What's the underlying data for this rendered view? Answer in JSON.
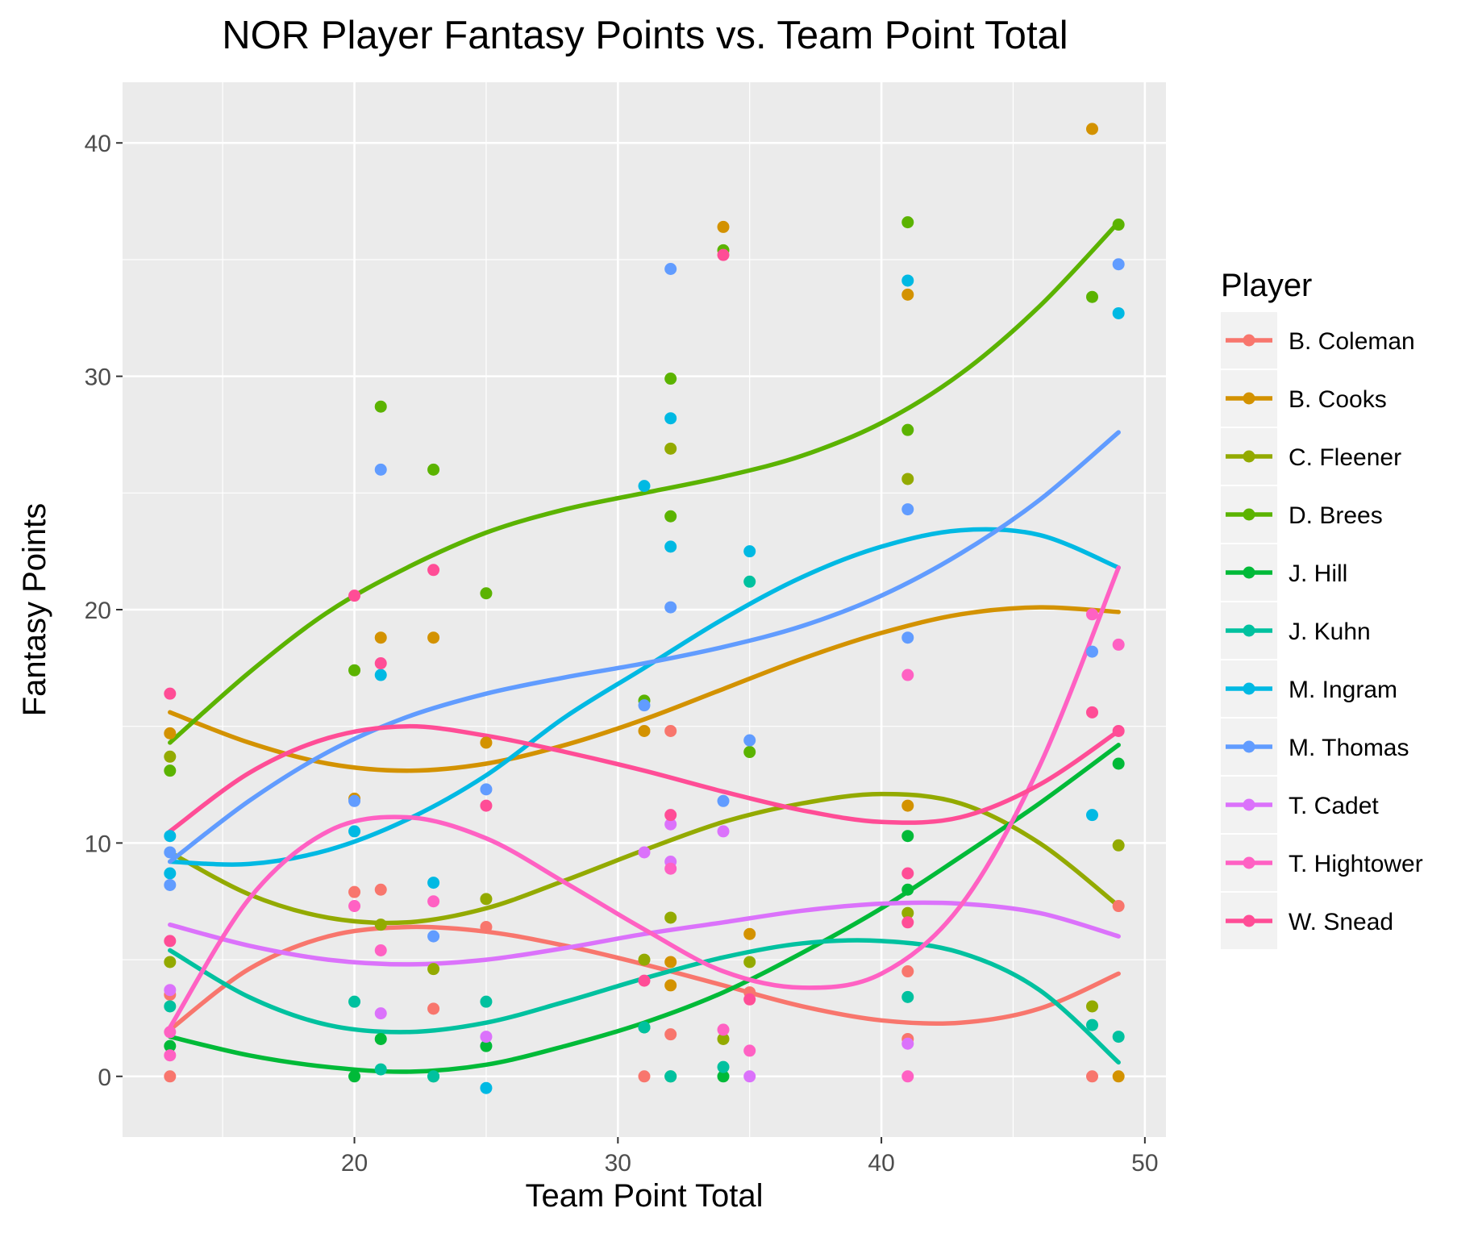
{
  "chart_data": {
    "type": "scatter",
    "title": "NOR Player Fantasy Points vs. Team Point Total",
    "xlabel": "Team Point Total",
    "ylabel": "Fantasy Points",
    "xlim": [
      11.2,
      50.8
    ],
    "ylim": [
      -2.6,
      42.6
    ],
    "x_ticks": [
      20,
      30,
      40,
      50
    ],
    "y_ticks": [
      0,
      10,
      20,
      30,
      40
    ],
    "grid": true,
    "legend": {
      "title": "Player",
      "position": "right"
    },
    "series": [
      {
        "name": "B. Coleman",
        "color": "#F8766D",
        "points": [
          [
            13,
            0
          ],
          [
            13,
            3.5
          ],
          [
            20,
            7.9
          ],
          [
            21,
            8
          ],
          [
            23,
            2.9
          ],
          [
            25,
            6.4
          ],
          [
            31,
            0
          ],
          [
            32,
            14.8
          ],
          [
            32,
            1.8
          ],
          [
            35,
            3.6
          ],
          [
            41,
            4.5
          ],
          [
            41,
            1.6
          ],
          [
            48,
            0
          ],
          [
            49,
            7.3
          ]
        ],
        "fit": [
          [
            13,
            2
          ],
          [
            16,
            4.6
          ],
          [
            19,
            6
          ],
          [
            22,
            6.4
          ],
          [
            25,
            6.2
          ],
          [
            28,
            5.6
          ],
          [
            31,
            4.8
          ],
          [
            34,
            3.9
          ],
          [
            37,
            3
          ],
          [
            40,
            2.4
          ],
          [
            43,
            2.3
          ],
          [
            46,
            2.9
          ],
          [
            49,
            4.4
          ]
        ]
      },
      {
        "name": "B. Cooks",
        "color": "#D39200",
        "points": [
          [
            13,
            14.7
          ],
          [
            20,
            11.9
          ],
          [
            21,
            18.8
          ],
          [
            23,
            18.8
          ],
          [
            25,
            14.3
          ],
          [
            31,
            14.8
          ],
          [
            32,
            4.9
          ],
          [
            32,
            3.9
          ],
          [
            34,
            36.4
          ],
          [
            35,
            6.1
          ],
          [
            41,
            33.5
          ],
          [
            41,
            11.6
          ],
          [
            48,
            40.6
          ],
          [
            49,
            0
          ]
        ],
        "fit": [
          [
            13,
            15.6
          ],
          [
            16,
            14.3
          ],
          [
            19,
            13.4
          ],
          [
            22,
            13.1
          ],
          [
            25,
            13.4
          ],
          [
            28,
            14.2
          ],
          [
            31,
            15.3
          ],
          [
            34,
            16.6
          ],
          [
            37,
            17.9
          ],
          [
            40,
            19
          ],
          [
            43,
            19.8
          ],
          [
            46,
            20.1
          ],
          [
            49,
            19.9
          ]
        ]
      },
      {
        "name": "C. Fleener",
        "color": "#93AA00",
        "points": [
          [
            13,
            13.7
          ],
          [
            13,
            4.9
          ],
          [
            21,
            6.5
          ],
          [
            23,
            4.6
          ],
          [
            25,
            7.6
          ],
          [
            31,
            5
          ],
          [
            32,
            26.9
          ],
          [
            32,
            6.8
          ],
          [
            34,
            1.6
          ],
          [
            35,
            4.9
          ],
          [
            41,
            25.6
          ],
          [
            41,
            7
          ],
          [
            48,
            3
          ],
          [
            49,
            9.9
          ]
        ],
        "fit": [
          [
            13,
            9.6
          ],
          [
            16,
            7.8
          ],
          [
            19,
            6.8
          ],
          [
            22,
            6.6
          ],
          [
            25,
            7.2
          ],
          [
            28,
            8.4
          ],
          [
            31,
            9.7
          ],
          [
            34,
            10.9
          ],
          [
            37,
            11.7
          ],
          [
            40,
            12.1
          ],
          [
            43,
            11.7
          ],
          [
            46,
            10
          ],
          [
            49,
            7.3
          ]
        ]
      },
      {
        "name": "D. Brees",
        "color": "#5BB300",
        "points": [
          [
            13,
            13.1
          ],
          [
            20,
            17.4
          ],
          [
            21,
            28.7
          ],
          [
            23,
            26
          ],
          [
            25,
            20.7
          ],
          [
            31,
            16.1
          ],
          [
            32,
            29.9
          ],
          [
            32,
            24
          ],
          [
            34,
            35.4
          ],
          [
            35,
            13.9
          ],
          [
            41,
            36.6
          ],
          [
            41,
            27.7
          ],
          [
            48,
            33.4
          ],
          [
            49,
            36.5
          ]
        ],
        "fit": [
          [
            13,
            14.3
          ],
          [
            16,
            17.3
          ],
          [
            19,
            19.9
          ],
          [
            22,
            21.8
          ],
          [
            25,
            23.3
          ],
          [
            28,
            24.3
          ],
          [
            31,
            25
          ],
          [
            34,
            25.7
          ],
          [
            37,
            26.6
          ],
          [
            40,
            28
          ],
          [
            43,
            30.1
          ],
          [
            46,
            33
          ],
          [
            49,
            36.6
          ]
        ]
      },
      {
        "name": "J. Hill",
        "color": "#00BA38",
        "points": [
          [
            13,
            1.3
          ],
          [
            20,
            0
          ],
          [
            21,
            1.6
          ],
          [
            23,
            0
          ],
          [
            25,
            1.3
          ],
          [
            31,
            2.1
          ],
          [
            32,
            0
          ],
          [
            34,
            0
          ],
          [
            41,
            10.3
          ],
          [
            41,
            8
          ],
          [
            49,
            13.4
          ]
        ],
        "fit": [
          [
            13,
            1.7
          ],
          [
            16,
            0.9
          ],
          [
            19,
            0.4
          ],
          [
            22,
            0.2
          ],
          [
            25,
            0.5
          ],
          [
            28,
            1.3
          ],
          [
            31,
            2.3
          ],
          [
            34,
            3.6
          ],
          [
            37,
            5.3
          ],
          [
            40,
            7.2
          ],
          [
            43,
            9.4
          ],
          [
            46,
            11.7
          ],
          [
            49,
            14.2
          ]
        ]
      },
      {
        "name": "J. Kuhn",
        "color": "#00C19F",
        "points": [
          [
            13,
            3
          ],
          [
            20,
            3.2
          ],
          [
            21,
            0.3
          ],
          [
            23,
            0
          ],
          [
            25,
            3.2
          ],
          [
            31,
            2.1
          ],
          [
            32,
            0
          ],
          [
            34,
            0.4
          ],
          [
            35,
            21.2
          ],
          [
            41,
            3.4
          ],
          [
            48,
            2.2
          ],
          [
            49,
            1.7
          ]
        ],
        "fit": [
          [
            13,
            5.4
          ],
          [
            16,
            3.4
          ],
          [
            19,
            2.2
          ],
          [
            22,
            1.9
          ],
          [
            25,
            2.3
          ],
          [
            28,
            3.2
          ],
          [
            31,
            4.2
          ],
          [
            34,
            5.1
          ],
          [
            37,
            5.7
          ],
          [
            40,
            5.8
          ],
          [
            43,
            5.3
          ],
          [
            46,
            3.7
          ],
          [
            49,
            0.6
          ]
        ]
      },
      {
        "name": "M. Ingram",
        "color": "#00B9E3",
        "points": [
          [
            13,
            10.3
          ],
          [
            13,
            8.7
          ],
          [
            20,
            10.5
          ],
          [
            21,
            17.2
          ],
          [
            23,
            8.3
          ],
          [
            25,
            -0.5
          ],
          [
            31,
            25.3
          ],
          [
            32,
            28.2
          ],
          [
            32,
            22.7
          ],
          [
            35,
            22.5
          ],
          [
            41,
            34.1
          ],
          [
            48,
            11.2
          ],
          [
            49,
            32.7
          ]
        ],
        "fit": [
          [
            13,
            9.2
          ],
          [
            16,
            9.1
          ],
          [
            19,
            9.7
          ],
          [
            22,
            11
          ],
          [
            25,
            12.9
          ],
          [
            28,
            15.4
          ],
          [
            31,
            17.5
          ],
          [
            34,
            19.6
          ],
          [
            37,
            21.4
          ],
          [
            40,
            22.7
          ],
          [
            43,
            23.4
          ],
          [
            46,
            23.2
          ],
          [
            49,
            21.8
          ]
        ]
      },
      {
        "name": "M. Thomas",
        "color": "#619CFF",
        "points": [
          [
            13,
            9.6
          ],
          [
            13,
            8.2
          ],
          [
            20,
            11.8
          ],
          [
            21,
            26
          ],
          [
            23,
            6
          ],
          [
            25,
            12.3
          ],
          [
            31,
            15.9
          ],
          [
            32,
            34.6
          ],
          [
            32,
            20.1
          ],
          [
            34,
            11.8
          ],
          [
            35,
            14.4
          ],
          [
            41,
            24.3
          ],
          [
            41,
            18.8
          ],
          [
            48,
            18.2
          ],
          [
            49,
            34.8
          ]
        ],
        "fit": [
          [
            13,
            9.2
          ],
          [
            16,
            11.8
          ],
          [
            19,
            13.9
          ],
          [
            22,
            15.4
          ],
          [
            25,
            16.4
          ],
          [
            28,
            17.1
          ],
          [
            31,
            17.7
          ],
          [
            34,
            18.4
          ],
          [
            37,
            19.3
          ],
          [
            40,
            20.6
          ],
          [
            43,
            22.4
          ],
          [
            46,
            24.7
          ],
          [
            49,
            27.6
          ]
        ]
      },
      {
        "name": "T. Cadet",
        "color": "#DB72FB",
        "points": [
          [
            13,
            3.7
          ],
          [
            21,
            2.7
          ],
          [
            25,
            1.7
          ],
          [
            31,
            9.6
          ],
          [
            32,
            10.8
          ],
          [
            32,
            9.2
          ],
          [
            34,
            10.5
          ],
          [
            35,
            0
          ],
          [
            41,
            1.4
          ]
        ],
        "fit": [
          [
            13,
            6.5
          ],
          [
            16,
            5.6
          ],
          [
            19,
            5
          ],
          [
            22,
            4.8
          ],
          [
            25,
            5
          ],
          [
            28,
            5.5
          ],
          [
            31,
            6.1
          ],
          [
            34,
            6.6
          ],
          [
            37,
            7.1
          ],
          [
            40,
            7.4
          ],
          [
            43,
            7.4
          ],
          [
            46,
            7
          ],
          [
            49,
            6
          ]
        ]
      },
      {
        "name": "T. Hightower",
        "color": "#FF61C3",
        "points": [
          [
            13,
            0.9
          ],
          [
            13,
            1.9
          ],
          [
            20,
            7.3
          ],
          [
            21,
            5.4
          ],
          [
            23,
            7.5
          ],
          [
            32,
            8.9
          ],
          [
            34,
            2
          ],
          [
            35,
            1.1
          ],
          [
            41,
            17.2
          ],
          [
            41,
            0
          ],
          [
            48,
            19.8
          ],
          [
            49,
            18.5
          ]
        ],
        "fit": [
          [
            13,
            2.1
          ],
          [
            16,
            7.6
          ],
          [
            19,
            10.5
          ],
          [
            22,
            11.1
          ],
          [
            25,
            10.2
          ],
          [
            28,
            8.3
          ],
          [
            31,
            6.3
          ],
          [
            34,
            4.5
          ],
          [
            37,
            3.8
          ],
          [
            40,
            4.4
          ],
          [
            43,
            7.3
          ],
          [
            46,
            13.3
          ],
          [
            49,
            21.8
          ]
        ]
      },
      {
        "name": "W. Snead",
        "color": "#FF4D96",
        "points": [
          [
            13,
            16.4
          ],
          [
            13,
            5.8
          ],
          [
            20,
            20.6
          ],
          [
            21,
            17.7
          ],
          [
            23,
            21.7
          ],
          [
            25,
            11.6
          ],
          [
            31,
            4.1
          ],
          [
            32,
            11.2
          ],
          [
            34,
            35.2
          ],
          [
            35,
            3.3
          ],
          [
            41,
            8.7
          ],
          [
            41,
            6.6
          ],
          [
            48,
            15.6
          ],
          [
            49,
            14.8
          ]
        ],
        "fit": [
          [
            13,
            10.5
          ],
          [
            16,
            13
          ],
          [
            19,
            14.5
          ],
          [
            22,
            15
          ],
          [
            25,
            14.6
          ],
          [
            28,
            13.9
          ],
          [
            31,
            13.1
          ],
          [
            34,
            12.2
          ],
          [
            37,
            11.4
          ],
          [
            40,
            10.9
          ],
          [
            43,
            11.1
          ],
          [
            46,
            12.5
          ],
          [
            49,
            14.8
          ]
        ]
      }
    ]
  }
}
